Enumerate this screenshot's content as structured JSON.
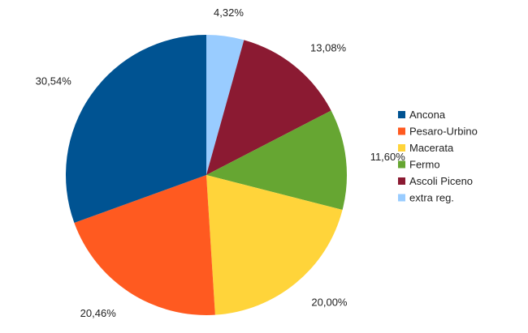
{
  "chart_data": {
    "type": "pie",
    "start_angle_deg": 0,
    "direction": "clockwise",
    "legend_position": "right",
    "slices": [
      {
        "name": "extra reg.",
        "value": 4.32,
        "label": "4,32%",
        "color": "#99ccff"
      },
      {
        "name": "Ascoli Piceno",
        "value": 13.08,
        "label": "13,08%",
        "color": "#8b1a32"
      },
      {
        "name": "Fermo",
        "value": 11.6,
        "label": "11,60%",
        "color": "#66a632"
      },
      {
        "name": "Macerata",
        "value": 20.0,
        "label": "20,00%",
        "color": "#ffd43a"
      },
      {
        "name": "Pesaro-Urbino",
        "value": 20.46,
        "label": "20,46%",
        "color": "#ff5a20"
      },
      {
        "name": "Ancona",
        "value": 30.54,
        "label": "30,54%",
        "color": "#005392"
      }
    ],
    "legend": [
      {
        "name": "Ancona",
        "color": "#005392"
      },
      {
        "name": "Pesaro-Urbino",
        "color": "#ff5a20"
      },
      {
        "name": "Macerata",
        "color": "#ffd43a"
      },
      {
        "name": "Fermo",
        "color": "#66a632"
      },
      {
        "name": "Ascoli Piceno",
        "color": "#8b1a32"
      },
      {
        "name": "extra reg.",
        "color": "#99ccff"
      }
    ]
  }
}
